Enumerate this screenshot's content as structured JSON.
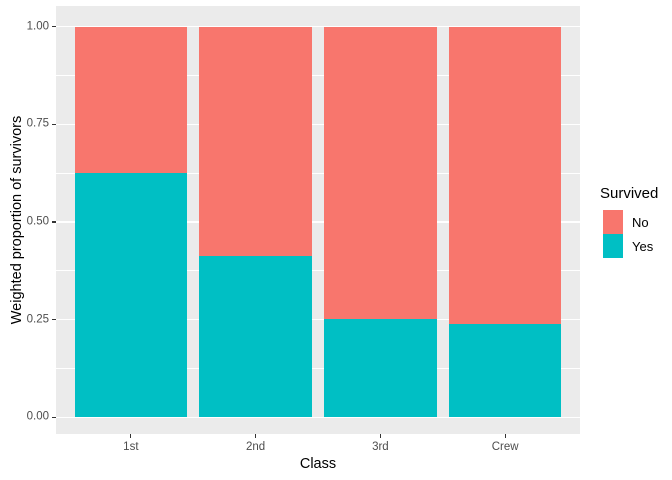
{
  "chart_data": {
    "type": "bar",
    "subtype": "stacked-proportion",
    "title": "",
    "xlabel": "Class",
    "ylabel": "Weighted proportion of survivors",
    "legend_title": "Survived",
    "legend_position": "right",
    "categories": [
      "1st",
      "2nd",
      "3rd",
      "Crew"
    ],
    "series": [
      {
        "name": "No",
        "color": "#F8766D",
        "values": [
          0.375,
          0.586,
          0.748,
          0.76
        ]
      },
      {
        "name": "Yes",
        "color": "#00BFC4",
        "values": [
          0.625,
          0.414,
          0.252,
          0.24
        ]
      }
    ],
    "ylim": [
      0,
      1
    ],
    "y_ticks": [
      "0.00",
      "0.25",
      "0.50",
      "0.75",
      "1.00"
    ],
    "y_tick_values": [
      0,
      0.25,
      0.5,
      0.75,
      1
    ],
    "y_minor_values": [
      0.125,
      0.375,
      0.625,
      0.875
    ],
    "grid": "white major and minor horizontal gridlines on gray panel"
  },
  "style": {
    "panel_background": "#EBEBEB",
    "gridline_color": "#FFFFFF",
    "axis_text_color": "#4D4D4D",
    "axis_title_color": "#000000",
    "tick_mark_color": "#333333",
    "page_background": "#FFFFFF"
  }
}
